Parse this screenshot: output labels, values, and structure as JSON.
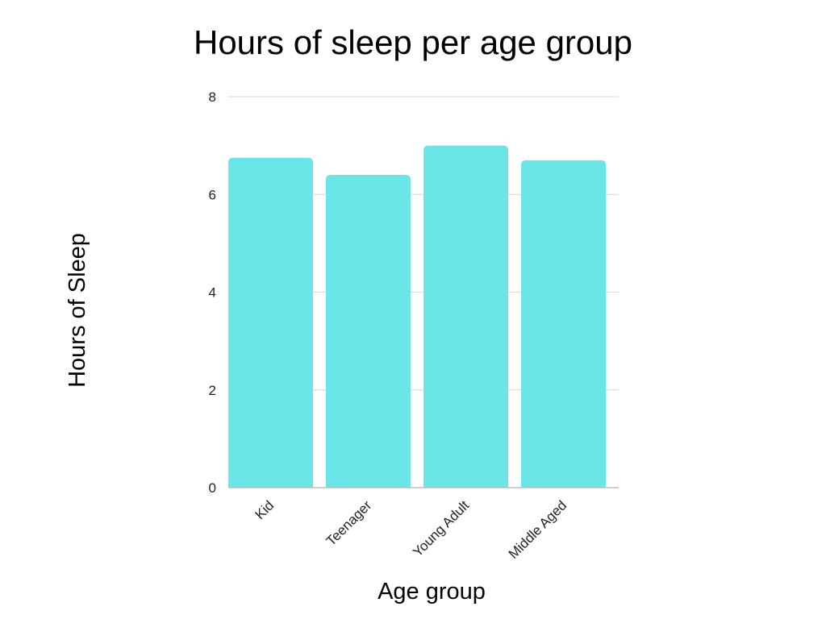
{
  "chart_data": {
    "type": "bar",
    "title": "Hours of sleep per age group",
    "xlabel": "Age group",
    "ylabel": "Hours of Sleep",
    "categories": [
      "Kid",
      "Teenager",
      "Young Adult",
      "Middle Aged"
    ],
    "values": [
      6.75,
      6.4,
      7.0,
      6.7
    ],
    "ylim": [
      0,
      8
    ],
    "yticks": [
      0,
      2,
      4,
      6,
      8
    ],
    "grid": true,
    "legend": "none",
    "bar_color": "#6ce5e8"
  }
}
